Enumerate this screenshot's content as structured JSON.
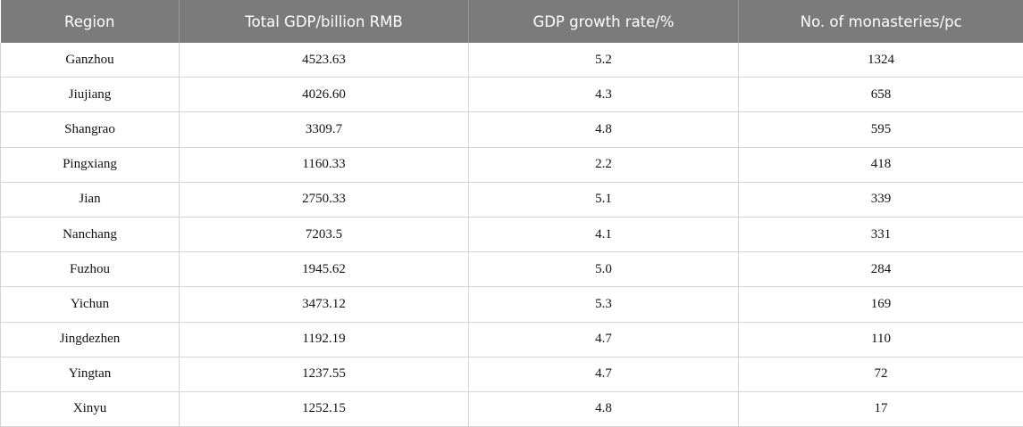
{
  "table": {
    "headers": [
      "Region",
      "Total GDP/billion RMB",
      "GDP growth rate/%",
      "No. of monasteries/pc"
    ],
    "rows": [
      [
        "Ganzhou",
        "4523.63",
        "5.2",
        "1324"
      ],
      [
        "Jiujiang",
        "4026.60",
        "4.3",
        "658"
      ],
      [
        "Shangrao",
        "3309.7",
        "4.8",
        "595"
      ],
      [
        "Pingxiang",
        "1160.33",
        "2.2",
        "418"
      ],
      [
        "Jian",
        "2750.33",
        "5.1",
        "339"
      ],
      [
        "Nanchang",
        "7203.5",
        "4.1",
        "331"
      ],
      [
        "Fuzhou",
        "1945.62",
        "5.0",
        "284"
      ],
      [
        "Yichun",
        "3473.12",
        "5.3",
        "169"
      ],
      [
        "Jingdezhen",
        "1192.19",
        "4.7",
        "110"
      ],
      [
        "Yingtan",
        "1237.55",
        "4.7",
        "72"
      ],
      [
        "Xinyu",
        "1252.15",
        "4.8",
        "17"
      ]
    ]
  },
  "colors": {
    "header_background": "#7b7b7b",
    "header_text": "#ffffff",
    "grid_lines": "#d4d4d4"
  }
}
